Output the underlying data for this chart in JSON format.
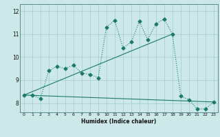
{
  "xlabel": "Humidex (Indice chaleur)",
  "bg_color": "#cce8e8",
  "grid_color": "#aacfcf",
  "line_color": "#1a7a6a",
  "xlim": [
    -0.5,
    23.5
  ],
  "ylim": [
    7.6,
    12.3
  ],
  "xticks": [
    0,
    1,
    2,
    3,
    4,
    5,
    6,
    7,
    8,
    9,
    10,
    11,
    12,
    13,
    14,
    15,
    16,
    17,
    18,
    19,
    20,
    21,
    22,
    23
  ],
  "yticks": [
    8,
    9,
    10,
    11,
    12
  ],
  "jagged_x": [
    0,
    1,
    2,
    3,
    4,
    5,
    6,
    7,
    8,
    9,
    10,
    11,
    12,
    13,
    14,
    15,
    16,
    17,
    18,
    19,
    20,
    21,
    22,
    23
  ],
  "jagged_y": [
    8.35,
    8.35,
    8.2,
    9.4,
    9.6,
    9.5,
    9.65,
    9.3,
    9.25,
    9.1,
    11.3,
    11.6,
    10.4,
    10.65,
    11.55,
    10.75,
    11.45,
    11.65,
    11.0,
    8.3,
    8.15,
    7.75,
    7.75,
    8.05
  ],
  "upper_line_x": [
    0,
    18
  ],
  "upper_line_y": [
    8.35,
    11.0
  ],
  "lower_line_x": [
    0,
    23
  ],
  "lower_line_y": [
    8.35,
    8.05
  ],
  "marker": "D",
  "marker_size": 2.5,
  "line_width": 0.8
}
